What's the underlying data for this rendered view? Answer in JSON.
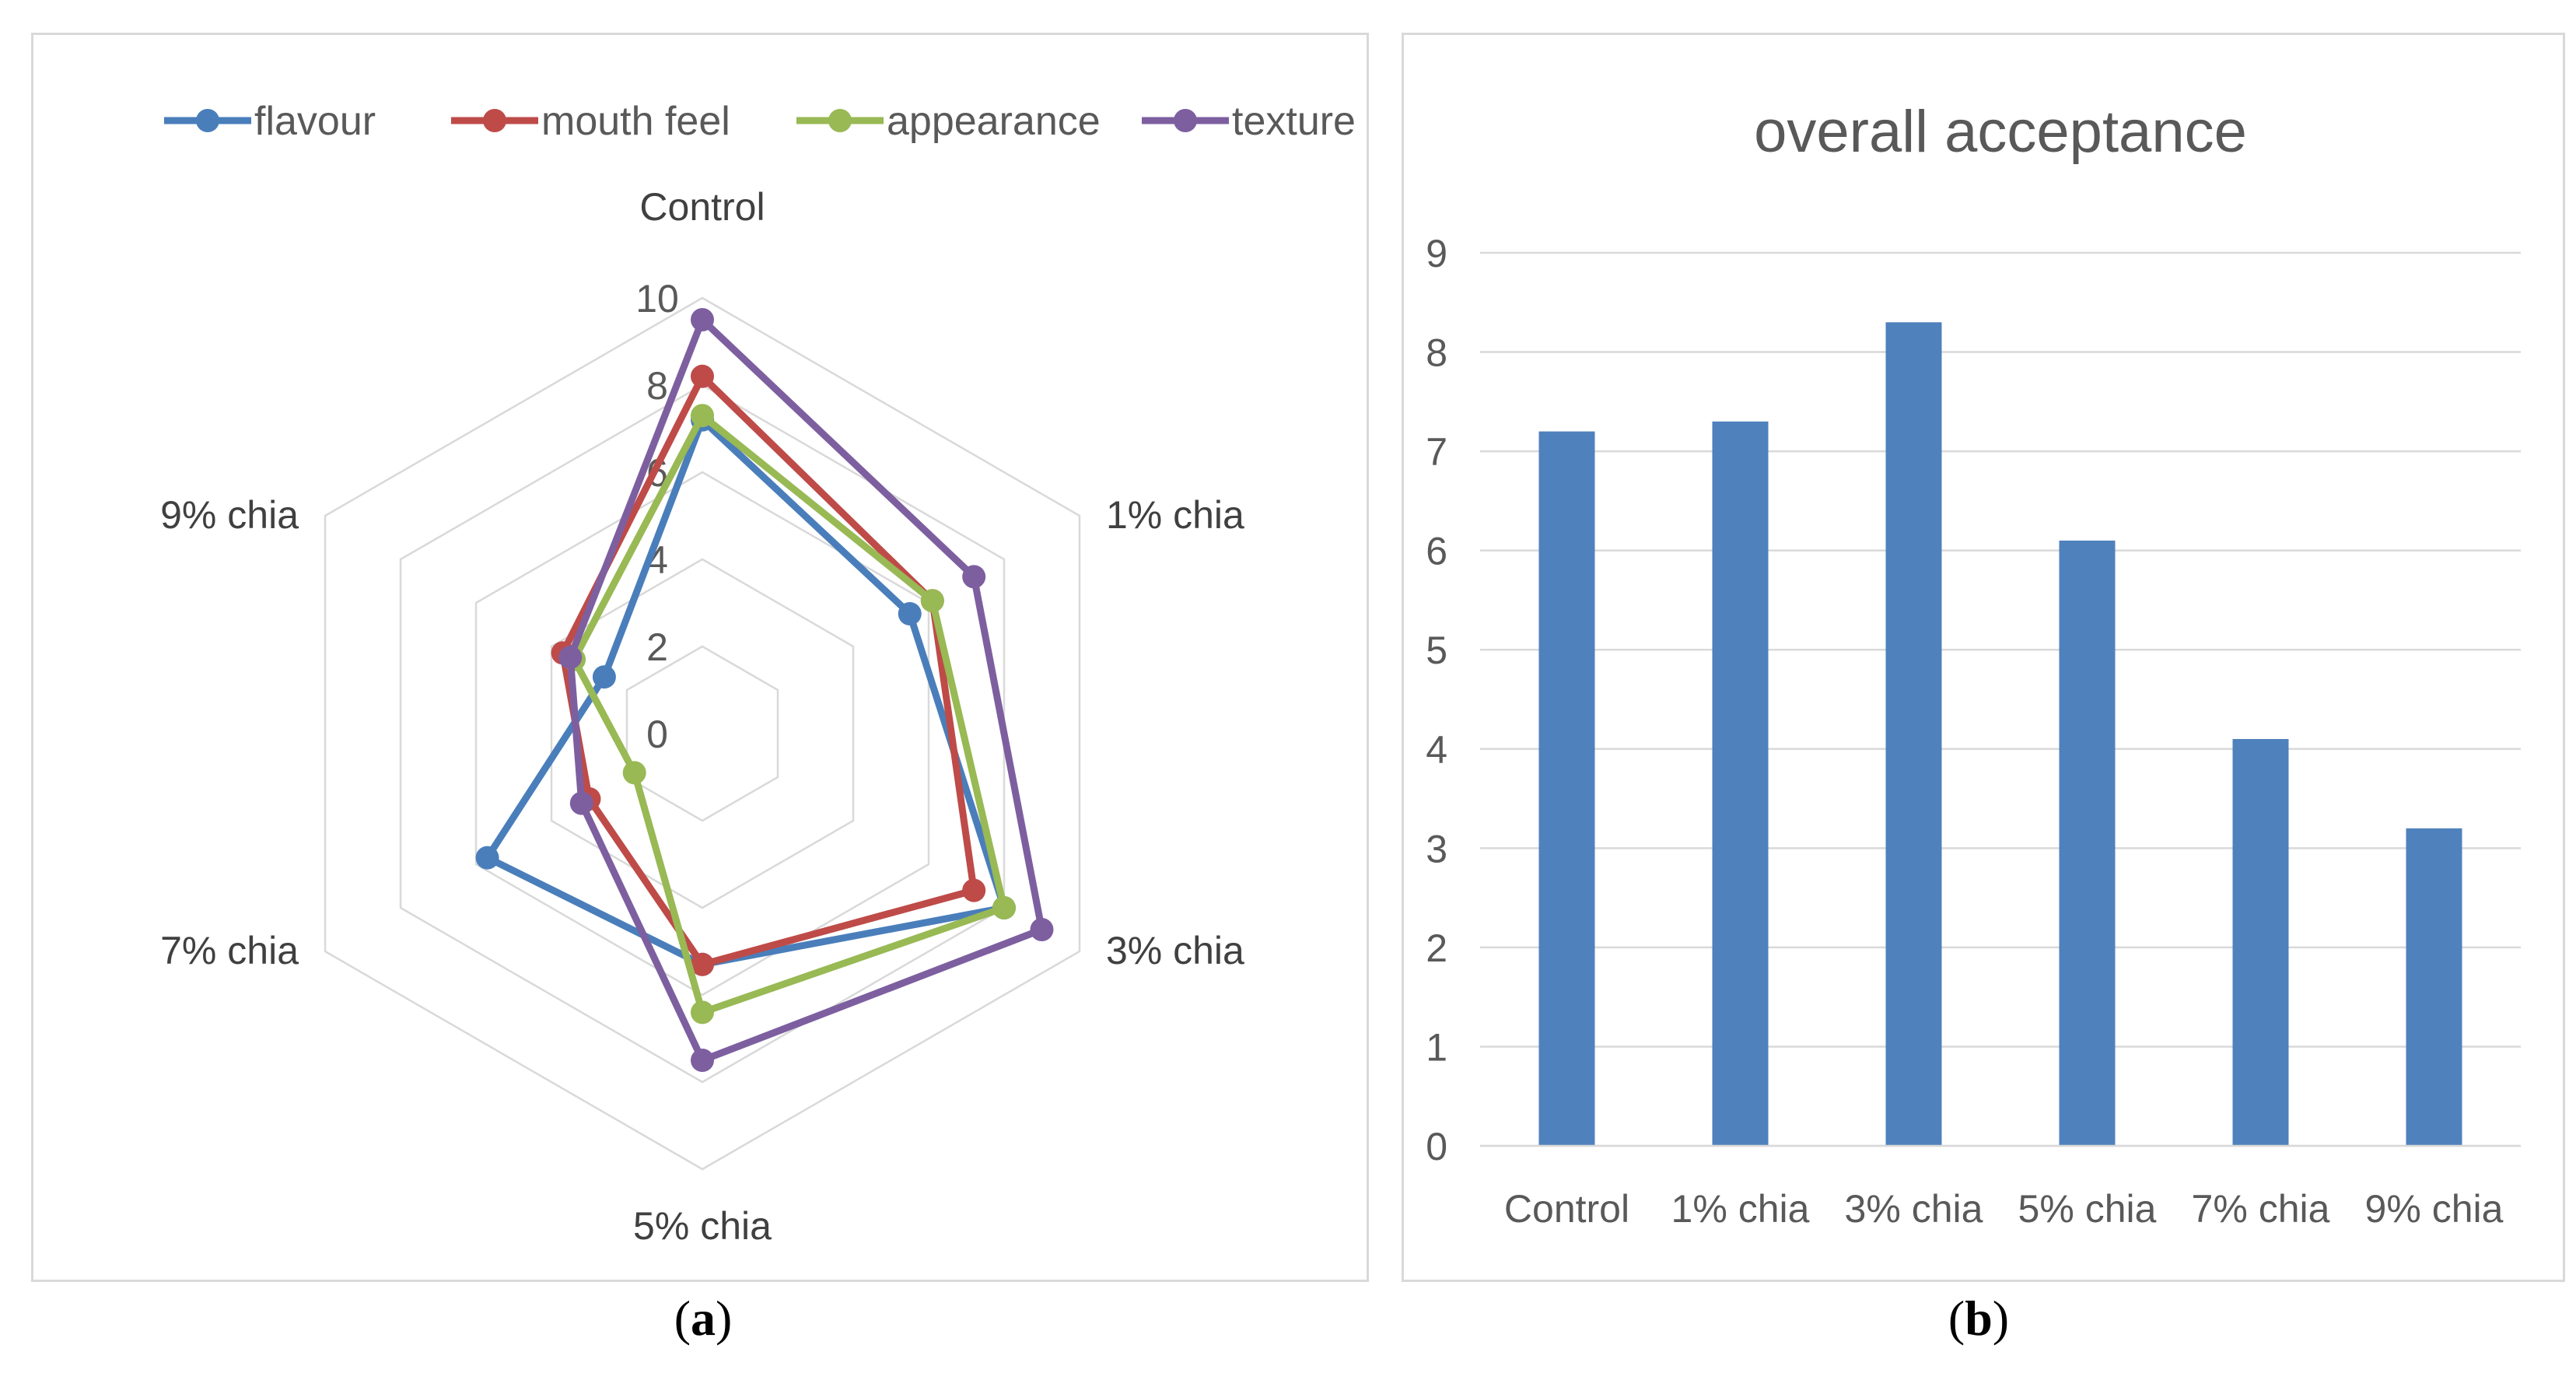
{
  "chart_data": [
    {
      "type": "radar",
      "panel": "a",
      "title": "",
      "categories": [
        "Control",
        "1% chia",
        "3% chia",
        "5% chia",
        "7% chia",
        "9% chia"
      ],
      "axis_ticks": [
        "0",
        "2",
        "4",
        "6",
        "8",
        "10"
      ],
      "rlim": [
        0,
        10
      ],
      "legend_position": "top",
      "series": [
        {
          "name": "flavour",
          "color": "#4a7ebb",
          "values": [
            7.2,
            5.5,
            8.0,
            5.3,
            5.7,
            2.6
          ]
        },
        {
          "name": "mouth feel",
          "color": "#be4b48",
          "values": [
            8.2,
            6.1,
            7.2,
            5.3,
            3.0,
            3.7
          ]
        },
        {
          "name": "appearance",
          "color": "#98b954",
          "values": [
            7.3,
            6.1,
            8.0,
            6.4,
            1.8,
            3.4
          ]
        },
        {
          "name": "texture",
          "color": "#7d5fa0",
          "values": [
            9.5,
            7.2,
            9.0,
            7.5,
            3.2,
            3.5
          ]
        }
      ]
    },
    {
      "type": "bar",
      "panel": "b",
      "title": "overall acceptance",
      "categories": [
        "Control",
        "1% chia",
        "3% chia",
        "5% chia",
        "7% chia",
        "9% chia"
      ],
      "values": [
        7.2,
        7.3,
        8.3,
        6.1,
        4.1,
        3.2
      ],
      "color": "#4f81bd",
      "ylim": [
        0,
        9
      ],
      "yticks": [
        "0",
        "1",
        "2",
        "3",
        "4",
        "5",
        "6",
        "7",
        "8",
        "9"
      ],
      "grid": true
    }
  ],
  "captions": {
    "a": "a",
    "b": "b"
  }
}
